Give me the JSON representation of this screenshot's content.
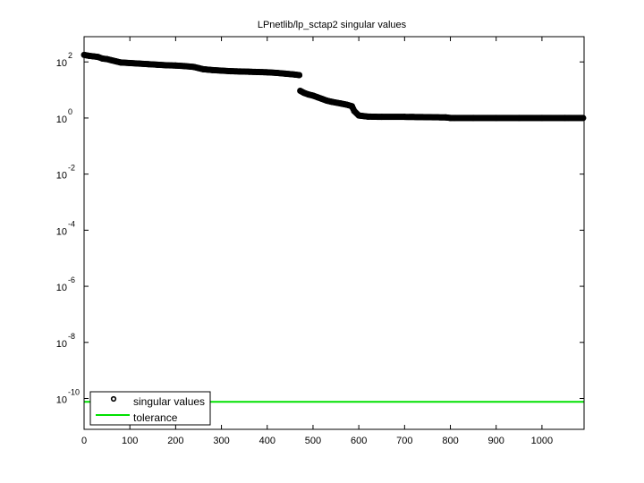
{
  "chart_data": {
    "type": "scatter",
    "title": "LPnetlib/lp_sctap2 singular values",
    "xlabel": "",
    "ylabel": "",
    "yscale": "log",
    "xlim": [
      0,
      1092
    ],
    "ylim_exp": [
      -11.1,
      2.9
    ],
    "grid": false,
    "legend_position": "lower left",
    "x_ticks": [
      0,
      100,
      200,
      300,
      400,
      500,
      600,
      700,
      800,
      900,
      1000
    ],
    "y_ticks_exp": [
      2,
      0,
      -2,
      -4,
      -6,
      -8,
      -10
    ],
    "series": [
      {
        "name": "singular values",
        "marker": "o",
        "color": "#000000",
        "points_log10": [
          [
            0,
            2.25
          ],
          [
            10,
            2.22
          ],
          [
            20,
            2.2
          ],
          [
            30,
            2.18
          ],
          [
            40,
            2.12
          ],
          [
            50,
            2.1
          ],
          [
            60,
            2.06
          ],
          [
            70,
            2.02
          ],
          [
            80,
            1.98
          ],
          [
            100,
            1.96
          ],
          [
            120,
            1.94
          ],
          [
            140,
            1.92
          ],
          [
            160,
            1.9
          ],
          [
            180,
            1.88
          ],
          [
            200,
            1.87
          ],
          [
            220,
            1.85
          ],
          [
            240,
            1.82
          ],
          [
            250,
            1.78
          ],
          [
            260,
            1.74
          ],
          [
            280,
            1.71
          ],
          [
            300,
            1.69
          ],
          [
            320,
            1.67
          ],
          [
            340,
            1.66
          ],
          [
            360,
            1.65
          ],
          [
            380,
            1.64
          ],
          [
            400,
            1.63
          ],
          [
            420,
            1.61
          ],
          [
            440,
            1.58
          ],
          [
            460,
            1.55
          ],
          [
            470,
            1.53
          ],
          [
            472,
            0.97
          ],
          [
            480,
            0.9
          ],
          [
            490,
            0.84
          ],
          [
            500,
            0.8
          ],
          [
            510,
            0.74
          ],
          [
            520,
            0.68
          ],
          [
            530,
            0.62
          ],
          [
            540,
            0.58
          ],
          [
            560,
            0.52
          ],
          [
            575,
            0.47
          ],
          [
            585,
            0.42
          ],
          [
            590,
            0.25
          ],
          [
            600,
            0.09
          ],
          [
            620,
            0.05
          ],
          [
            650,
            0.04
          ],
          [
            700,
            0.04
          ],
          [
            750,
            0.03
          ],
          [
            790,
            0.02
          ],
          [
            800,
            0.0
          ],
          [
            850,
            0.0
          ],
          [
            900,
            0.0
          ],
          [
            950,
            0.0
          ],
          [
            1000,
            0.0
          ],
          [
            1050,
            0.0
          ],
          [
            1090,
            0.0
          ]
        ]
      },
      {
        "name": "tolerance",
        "style": "line",
        "color": "#00e000",
        "value_log10": -10.12
      }
    ]
  },
  "legend": {
    "items": [
      {
        "label": "singular values"
      },
      {
        "label": "tolerance"
      }
    ]
  }
}
